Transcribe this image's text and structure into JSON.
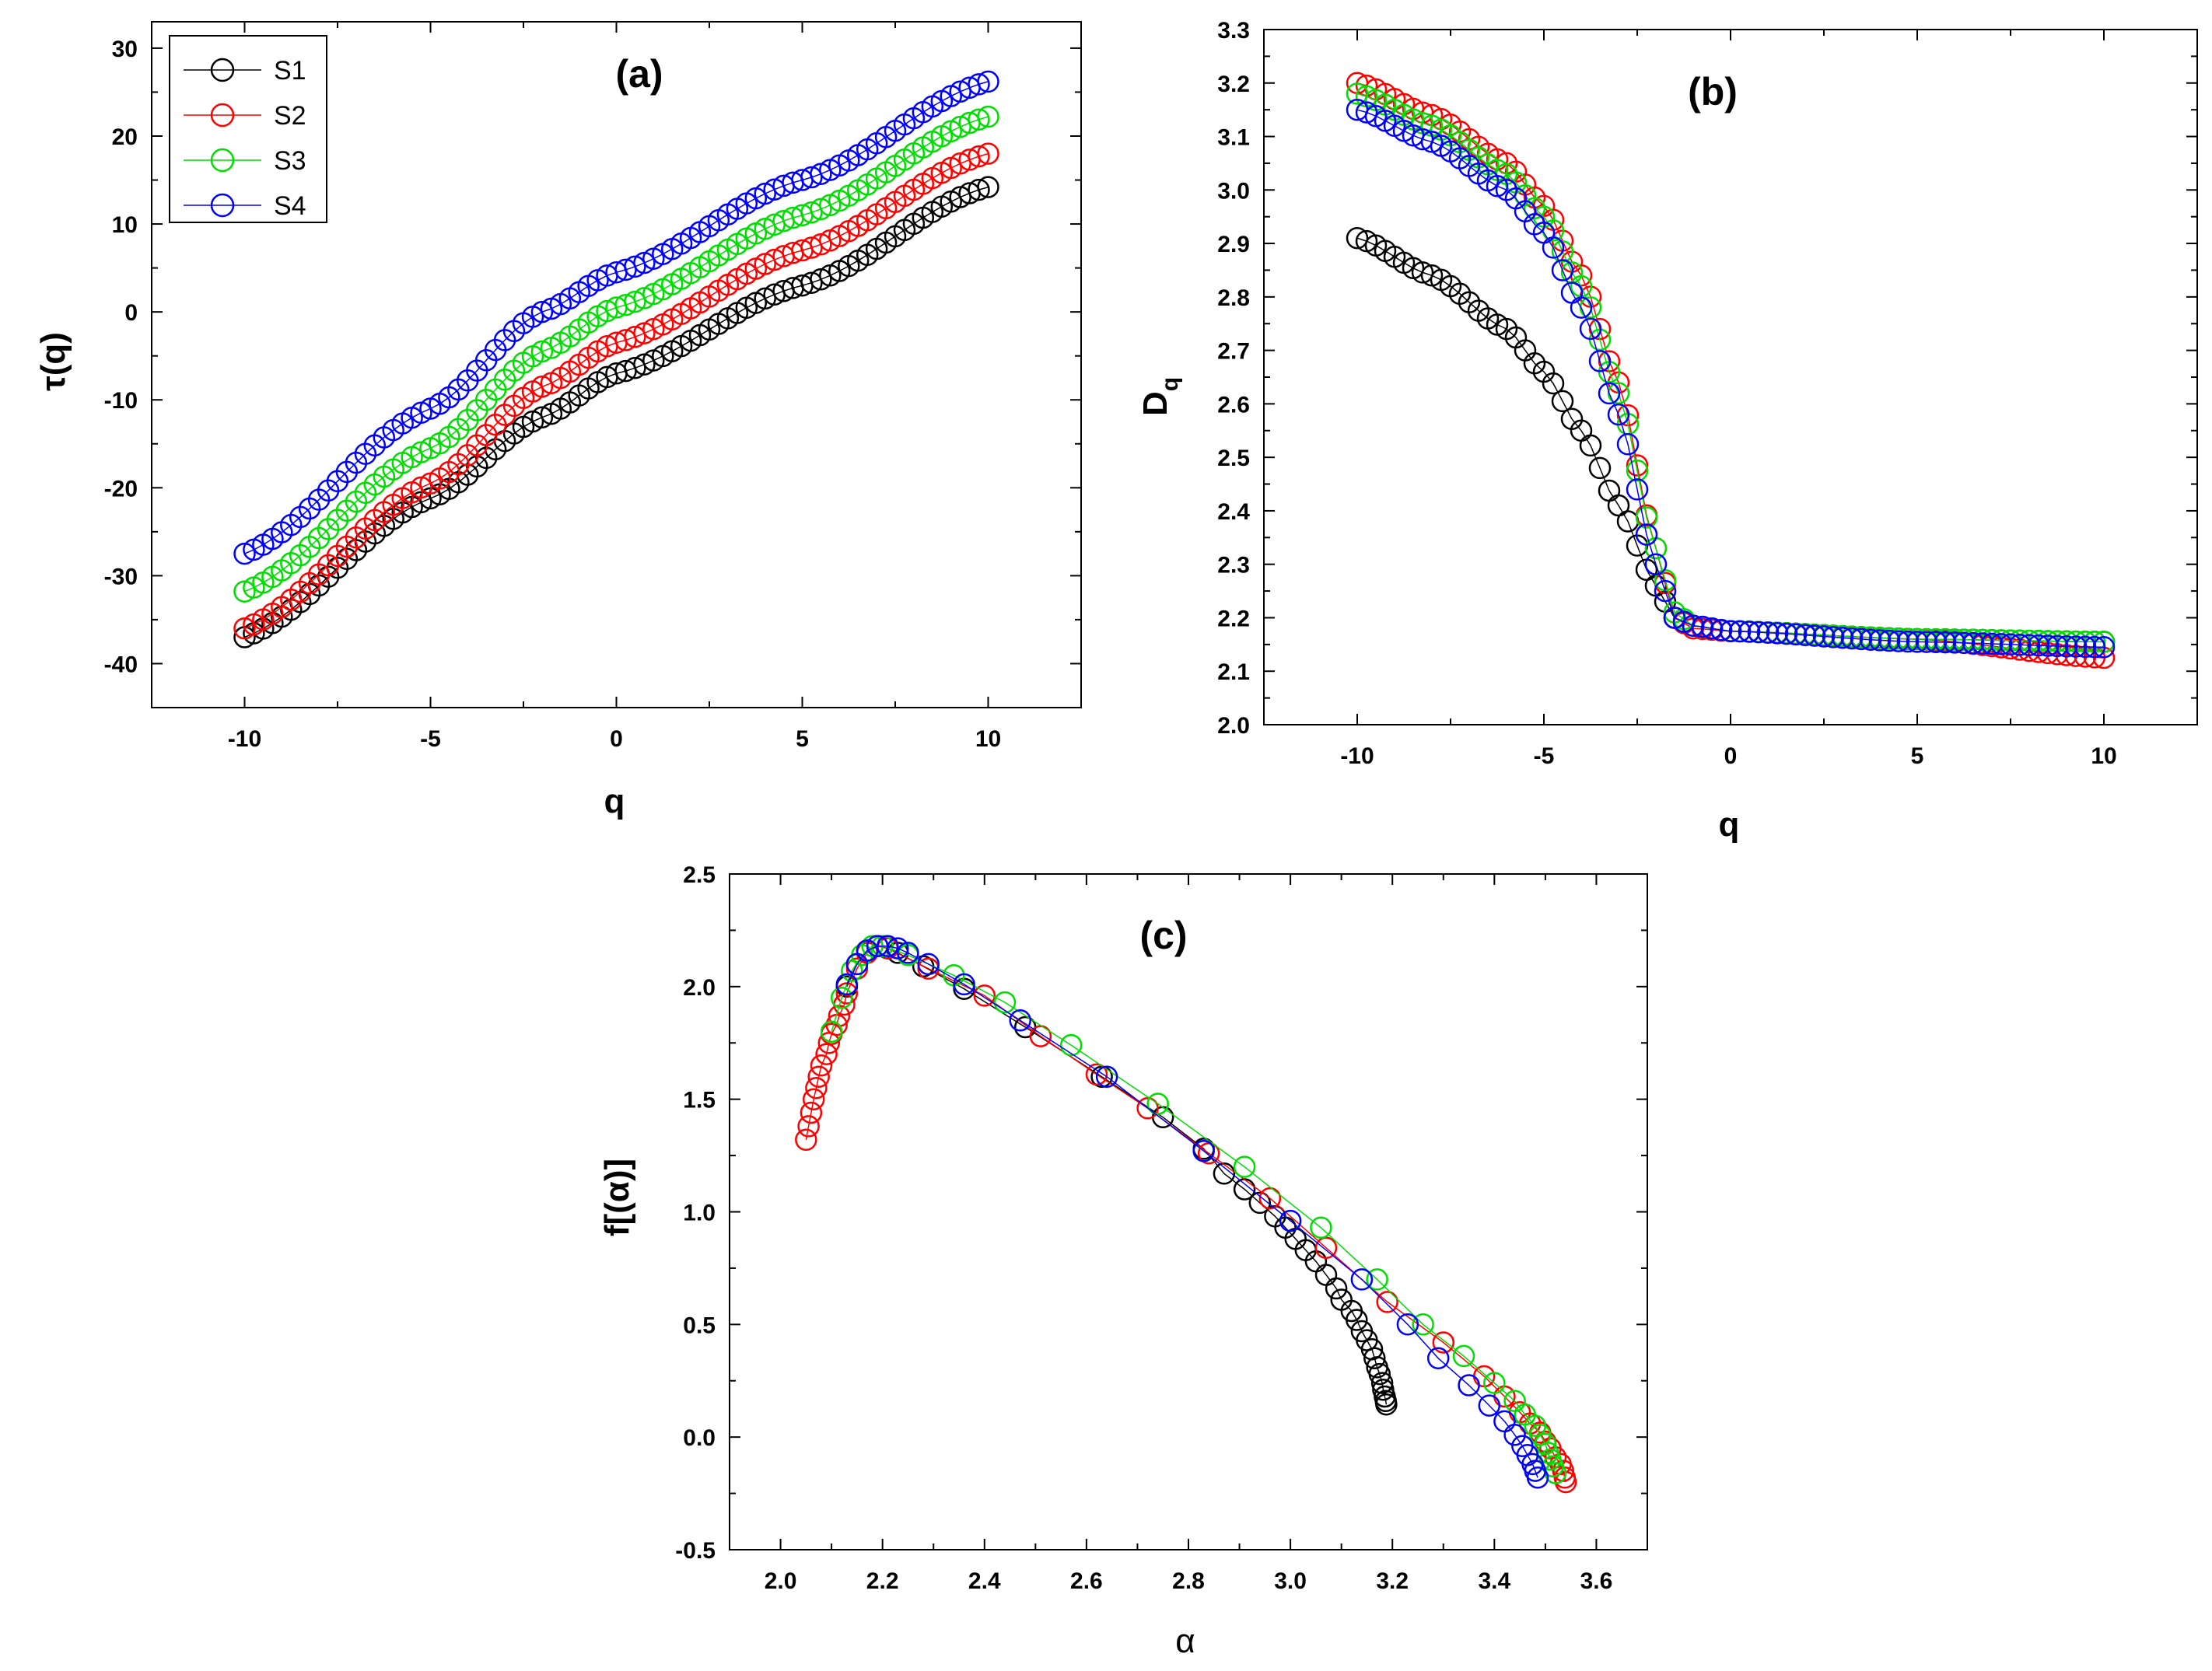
{
  "colors": {
    "S1": "#000000",
    "S2": "#ff0000",
    "S3": "#00dd00",
    "S4": "#0000ff"
  },
  "chart_data": [
    {
      "id": "a",
      "type": "scatter",
      "title": "(a)",
      "xlabel": "q",
      "ylabel": "τ(q)",
      "xlim": [
        -12.5,
        12.5
      ],
      "ylim": [
        -45,
        33
      ],
      "xticks": [
        -10,
        -5,
        0,
        5,
        10
      ],
      "xtick_labels": [
        "-10",
        "-5",
        "0",
        "5",
        "10"
      ],
      "yticks": [
        -40,
        -30,
        -20,
        -10,
        0,
        10,
        20,
        30
      ],
      "ytick_labels": [
        "-40",
        "-30",
        "-20",
        "-10",
        "0",
        "10",
        "20",
        "30"
      ],
      "legend": {
        "position": "top-left",
        "entries": [
          {
            "name": "S1",
            "color": "#000000"
          },
          {
            "name": "S2",
            "color": "#ff0000"
          },
          {
            "name": "S3",
            "color": "#00dd00"
          },
          {
            "name": "S4",
            "color": "#0000ff"
          }
        ]
      },
      "series": [
        {
          "name": "S1",
          "color": "#000000",
          "q_range": [
            -10,
            10
          ],
          "step": 0.25,
          "anchors": [
            [
              -10,
              -37.0
            ],
            [
              -5,
              -21.2
            ],
            [
              -2,
              -12.0
            ],
            [
              0,
              -7.0
            ],
            [
              5,
              3.0
            ],
            [
              10,
              14.2
            ]
          ]
        },
        {
          "name": "S2",
          "color": "#ff0000",
          "q_range": [
            -10,
            10
          ],
          "step": 0.25,
          "anchors": [
            [
              -10,
              -36.0
            ],
            [
              -5,
              -19.5
            ],
            [
              -2,
              -8.5
            ],
            [
              0,
              -3.5
            ],
            [
              5,
              7.0
            ],
            [
              10,
              18.0
            ]
          ]
        },
        {
          "name": "S3",
          "color": "#00dd00",
          "q_range": [
            -10,
            10
          ],
          "step": 0.25,
          "anchors": [
            [
              -10,
              -31.8
            ],
            [
              -5,
              -15.5
            ],
            [
              -2,
              -4.5
            ],
            [
              0,
              0.5
            ],
            [
              5,
              11.0
            ],
            [
              10,
              22.2
            ]
          ]
        },
        {
          "name": "S4",
          "color": "#0000ff",
          "q_range": [
            -10,
            10
          ],
          "step": 0.25,
          "anchors": [
            [
              -10,
              -27.5
            ],
            [
              -5,
              -11.0
            ],
            [
              -2,
              0.0
            ],
            [
              0,
              4.5
            ],
            [
              5,
              15.0
            ],
            [
              10,
              26.2
            ]
          ]
        }
      ]
    },
    {
      "id": "b",
      "type": "scatter",
      "title": "(b)",
      "xlabel": "q",
      "ylabel": "D",
      "ylabel_sub": "q",
      "xlim": [
        -12.5,
        12.5
      ],
      "ylim": [
        2.0,
        3.3
      ],
      "xticks": [
        -10,
        -5,
        0,
        5,
        10
      ],
      "xtick_labels": [
        "-10",
        "-5",
        "0",
        "5",
        "10"
      ],
      "yticks": [
        2.0,
        2.1,
        2.2,
        2.3,
        2.4,
        2.5,
        2.6,
        2.7,
        2.8,
        2.9,
        3.0,
        3.1,
        3.2,
        3.3
      ],
      "ytick_labels": [
        "2.0",
        "2.1",
        "2.2",
        "2.3",
        "2.4",
        "2.5",
        "2.6",
        "2.7",
        "2.8",
        "2.9",
        "3.0",
        "3.1",
        "3.2",
        "3.3"
      ],
      "series": [
        {
          "name": "S1",
          "color": "#000000",
          "q_range": [
            -10,
            10
          ],
          "step": 0.25,
          "anchors": [
            [
              -10,
              2.91
            ],
            [
              -8,
              2.84
            ],
            [
              -6,
              2.74
            ],
            [
              -5,
              2.66
            ],
            [
              -4,
              2.55
            ],
            [
              -3,
              2.41
            ],
            [
              -2,
              2.26
            ],
            [
              -1.5,
              2.2
            ],
            [
              -1,
              2.185
            ],
            [
              0,
              2.175
            ],
            [
              5,
              2.16
            ],
            [
              10,
              2.155
            ]
          ]
        },
        {
          "name": "S2",
          "color": "#ff0000",
          "q_range": [
            -10,
            10
          ],
          "step": 0.25,
          "anchors": [
            [
              -10,
              3.2
            ],
            [
              -8,
              3.14
            ],
            [
              -6,
              3.05
            ],
            [
              -5,
              2.97
            ],
            [
              -4,
              2.84
            ],
            [
              -3,
              2.64
            ],
            [
              -2,
              2.33
            ],
            [
              -1.5,
              2.2
            ],
            [
              -1,
              2.18
            ],
            [
              0,
              2.175
            ],
            [
              5,
              2.16
            ],
            [
              10,
              2.125
            ]
          ]
        },
        {
          "name": "S3",
          "color": "#00dd00",
          "q_range": [
            -10,
            10
          ],
          "step": 0.25,
          "anchors": [
            [
              -10,
              3.18
            ],
            [
              -8,
              3.12
            ],
            [
              -6,
              3.03
            ],
            [
              -5,
              2.95
            ],
            [
              -4,
              2.82
            ],
            [
              -3,
              2.62
            ],
            [
              -2,
              2.33
            ],
            [
              -1.5,
              2.21
            ],
            [
              -1,
              2.185
            ],
            [
              0,
              2.175
            ],
            [
              5,
              2.16
            ],
            [
              10,
              2.155
            ]
          ]
        },
        {
          "name": "S4",
          "color": "#0000ff",
          "q_range": [
            -10,
            10
          ],
          "step": 0.25,
          "anchors": [
            [
              -10,
              3.15
            ],
            [
              -8,
              3.09
            ],
            [
              -6,
              3.0
            ],
            [
              -5,
              2.92
            ],
            [
              -4,
              2.78
            ],
            [
              -3,
              2.58
            ],
            [
              -2,
              2.3
            ],
            [
              -1.5,
              2.2
            ],
            [
              -1,
              2.185
            ],
            [
              0,
              2.175
            ],
            [
              5,
              2.155
            ],
            [
              10,
              2.145
            ]
          ]
        }
      ]
    },
    {
      "id": "c",
      "type": "scatter",
      "title": "(c)",
      "xlabel": "α",
      "ylabel": "f[(α)]",
      "xlim": [
        1.9,
        3.7
      ],
      "ylim": [
        -0.5,
        2.5
      ],
      "xticks": [
        2.0,
        2.2,
        2.4,
        2.6,
        2.8,
        3.0,
        3.2,
        3.4,
        3.6
      ],
      "xtick_labels": [
        "2.0",
        "2.2",
        "2.4",
        "2.6",
        "2.8",
        "3.0",
        "3.2",
        "3.4",
        "3.6"
      ],
      "yticks": [
        -0.5,
        0.0,
        0.5,
        1.0,
        1.5,
        2.0,
        2.5
      ],
      "ytick_labels": [
        "-0.5",
        "0.0",
        "0.5",
        "1.0",
        "1.5",
        "2.0",
        "2.5"
      ],
      "series": [
        {
          "name": "S1",
          "color": "#000000",
          "points": [
            [
              2.13,
              2.0
            ],
            [
              2.15,
              2.1
            ],
            [
              2.17,
              2.16
            ],
            [
              2.19,
              2.18
            ],
            [
              2.21,
              2.17
            ],
            [
              2.23,
              2.15
            ],
            [
              2.28,
              2.09
            ],
            [
              2.36,
              1.99
            ],
            [
              2.48,
              1.82
            ],
            [
              2.63,
              1.6
            ],
            [
              2.75,
              1.42
            ],
            [
              2.83,
              1.28
            ],
            [
              2.87,
              1.17
            ],
            [
              2.91,
              1.1
            ],
            [
              2.94,
              1.04
            ],
            [
              2.97,
              0.98
            ],
            [
              2.99,
              0.93
            ],
            [
              3.01,
              0.88
            ],
            [
              3.03,
              0.83
            ],
            [
              3.05,
              0.78
            ],
            [
              3.07,
              0.72
            ],
            [
              3.09,
              0.66
            ],
            [
              3.1,
              0.61
            ],
            [
              3.12,
              0.56
            ],
            [
              3.13,
              0.52
            ],
            [
              3.14,
              0.47
            ],
            [
              3.15,
              0.43
            ],
            [
              3.16,
              0.39
            ],
            [
              3.165,
              0.35
            ],
            [
              3.17,
              0.31
            ],
            [
              3.175,
              0.28
            ],
            [
              3.18,
              0.24
            ],
            [
              3.182,
              0.21
            ],
            [
              3.185,
              0.18
            ],
            [
              3.187,
              0.16
            ],
            [
              3.188,
              0.145
            ]
          ]
        },
        {
          "name": "S2",
          "color": "#ff0000",
          "points": [
            [
              2.05,
              1.32
            ],
            [
              2.055,
              1.38
            ],
            [
              2.06,
              1.44
            ],
            [
              2.065,
              1.5
            ],
            [
              2.07,
              1.55
            ],
            [
              2.075,
              1.6
            ],
            [
              2.08,
              1.65
            ],
            [
              2.09,
              1.7
            ],
            [
              2.095,
              1.75
            ],
            [
              2.1,
              1.79
            ],
            [
              2.11,
              1.83
            ],
            [
              2.115,
              1.87
            ],
            [
              2.125,
              1.92
            ],
            [
              2.13,
              1.97
            ],
            [
              2.15,
              2.08
            ],
            [
              2.17,
              2.15
            ],
            [
              2.19,
              2.18
            ],
            [
              2.21,
              2.17
            ],
            [
              2.29,
              2.08
            ],
            [
              2.4,
              1.96
            ],
            [
              2.51,
              1.78
            ],
            [
              2.62,
              1.61
            ],
            [
              2.72,
              1.46
            ],
            [
              2.84,
              1.26
            ],
            [
              2.96,
              1.06
            ],
            [
              3.07,
              0.84
            ],
            [
              3.19,
              0.6
            ],
            [
              3.3,
              0.42
            ],
            [
              3.38,
              0.27
            ],
            [
              3.42,
              0.18
            ],
            [
              3.45,
              0.11
            ],
            [
              3.47,
              0.06
            ],
            [
              3.49,
              0.02
            ],
            [
              3.5,
              -0.02
            ],
            [
              3.51,
              -0.05
            ],
            [
              3.52,
              -0.09
            ],
            [
              3.53,
              -0.12
            ],
            [
              3.535,
              -0.15
            ],
            [
              3.538,
              -0.18
            ],
            [
              3.54,
              -0.2
            ]
          ]
        },
        {
          "name": "S3",
          "color": "#00dd00",
          "points": [
            [
              2.1,
              1.8
            ],
            [
              2.12,
              1.95
            ],
            [
              2.14,
              2.07
            ],
            [
              2.16,
              2.14
            ],
            [
              2.18,
              2.18
            ],
            [
              2.2,
              2.18
            ],
            [
              2.25,
              2.14
            ],
            [
              2.34,
              2.05
            ],
            [
              2.44,
              1.93
            ],
            [
              2.57,
              1.74
            ],
            [
              2.74,
              1.48
            ],
            [
              2.91,
              1.2
            ],
            [
              3.06,
              0.93
            ],
            [
              3.17,
              0.7
            ],
            [
              3.26,
              0.5
            ],
            [
              3.34,
              0.36
            ],
            [
              3.4,
              0.24
            ],
            [
              3.44,
              0.16
            ],
            [
              3.46,
              0.1
            ],
            [
              3.48,
              0.05
            ],
            [
              3.49,
              0.01
            ],
            [
              3.5,
              -0.03
            ],
            [
              3.505,
              -0.07
            ],
            [
              3.51,
              -0.1
            ],
            [
              3.515,
              -0.13
            ],
            [
              3.52,
              -0.16
            ]
          ]
        },
        {
          "name": "S4",
          "color": "#0000ff",
          "points": [
            [
              2.13,
              2.01
            ],
            [
              2.15,
              2.1
            ],
            [
              2.17,
              2.16
            ],
            [
              2.19,
              2.18
            ],
            [
              2.21,
              2.18
            ],
            [
              2.23,
              2.17
            ],
            [
              2.25,
              2.15
            ],
            [
              2.29,
              2.1
            ],
            [
              2.36,
              2.01
            ],
            [
              2.47,
              1.85
            ],
            [
              2.64,
              1.6
            ],
            [
              2.83,
              1.27
            ],
            [
              3.0,
              0.96
            ],
            [
              3.14,
              0.7
            ],
            [
              3.23,
              0.5
            ],
            [
              3.29,
              0.35
            ],
            [
              3.35,
              0.23
            ],
            [
              3.39,
              0.14
            ],
            [
              3.42,
              0.07
            ],
            [
              3.44,
              0.01
            ],
            [
              3.455,
              -0.04
            ],
            [
              3.465,
              -0.08
            ],
            [
              3.475,
              -0.12
            ],
            [
              3.48,
              -0.15
            ],
            [
              3.485,
              -0.18
            ]
          ]
        }
      ]
    }
  ]
}
